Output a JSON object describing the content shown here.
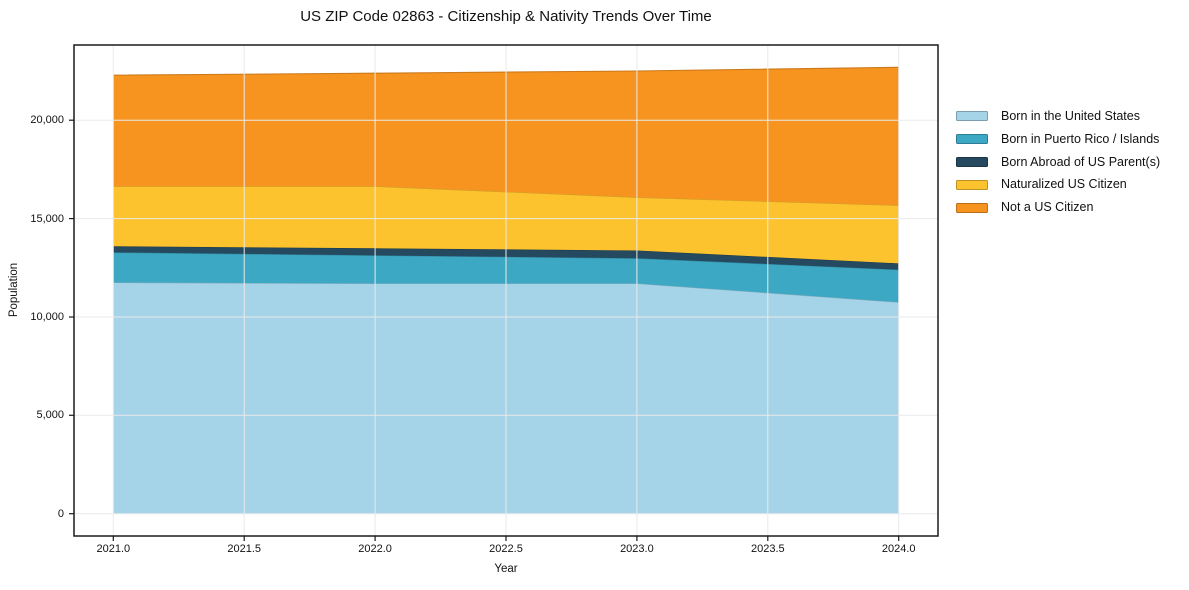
{
  "chart": {
    "title": "US ZIP Code 02863 - Citizenship & Nativity Trends Over Time",
    "xlabel": "Year",
    "ylabel": "Population"
  },
  "chart_data": {
    "type": "area",
    "stacked": true,
    "title": "US ZIP Code 02863 - Citizenship & Nativity Trends Over Time",
    "xlabel": "Year",
    "ylabel": "Population",
    "x": [
      2021,
      2022,
      2023,
      2024
    ],
    "series": [
      {
        "name": "Born in the United States",
        "color": "#a5d3e8",
        "values": [
          11750,
          11700,
          11700,
          10750
        ]
      },
      {
        "name": "Born in Puerto Rico / Islands",
        "color": "#3da8c4",
        "values": [
          1530,
          1430,
          1280,
          1650
        ]
      },
      {
        "name": "Born Abroad of US Parent(s)",
        "color": "#254a60",
        "values": [
          310,
          360,
          400,
          320
        ]
      },
      {
        "name": "Naturalized US Citizen",
        "color": "#fcc32f",
        "values": [
          3050,
          3150,
          2700,
          2950
        ]
      },
      {
        "name": "Not a US Citizen",
        "color": "#f79420",
        "values": [
          5650,
          5750,
          6420,
          7020
        ]
      }
    ],
    "stacked_totals": [
      22290,
      22390,
      22500,
      22690
    ],
    "x_ticks": {
      "values": [
        2021.0,
        2021.5,
        2022.0,
        2022.5,
        2023.0,
        2023.5,
        2024.0
      ],
      "labels": [
        "2021.0",
        "2021.5",
        "2022.0",
        "2022.5",
        "2023.0",
        "2023.5",
        "2024.0"
      ]
    },
    "y_ticks": {
      "values": [
        0,
        5000,
        10000,
        15000,
        20000
      ],
      "labels": [
        "0",
        "5,000",
        "10,000",
        "15,000",
        "20,000"
      ]
    },
    "xlim": [
      2020.85,
      2024.15
    ],
    "ylim": [
      -1134,
      23824
    ],
    "grid": true,
    "legend_position": "right",
    "colors": {
      "background": "#ffffff",
      "grid": "#eaeaea",
      "spine": "#1a1a1a",
      "text": "#111111"
    }
  }
}
